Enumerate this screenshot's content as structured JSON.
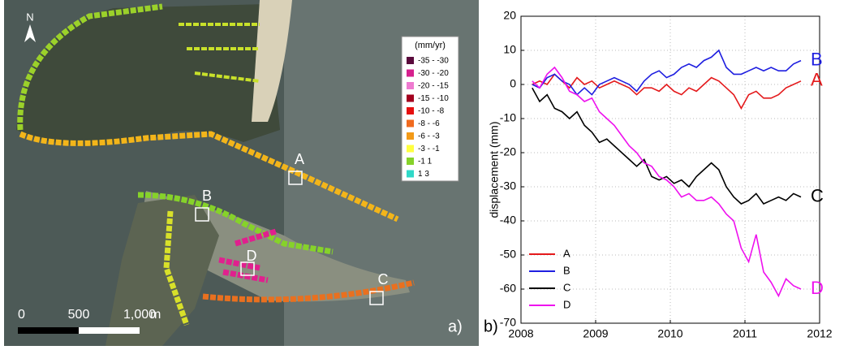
{
  "map": {
    "north": "N",
    "legend": {
      "title": "(mm/yr)",
      "items": [
        {
          "label": "-35 - -30",
          "color": "#5a0a3c"
        },
        {
          "label": "-30 - -20",
          "color": "#d6208e"
        },
        {
          "label": "-20 - -15",
          "color": "#ee7ad0"
        },
        {
          "label": "-15 - -10",
          "color": "#a3001e"
        },
        {
          "label": "-10 - -8",
          "color": "#e60f0f"
        },
        {
          "label": "-8 - -6",
          "color": "#f06a1f"
        },
        {
          "label": "-6 - -3",
          "color": "#f39a18"
        },
        {
          "label": "-3 - -1",
          "color": "#ffff40"
        },
        {
          "label": "-1 1",
          "color": "#86d22a"
        },
        {
          "label": "1 3",
          "color": "#30d9c8"
        }
      ]
    },
    "sites": [
      "A",
      "B",
      "C",
      "D"
    ],
    "scale_labels": [
      "0",
      "500",
      "1,000",
      "m"
    ],
    "panel_label": "a)"
  },
  "chart_data": {
    "type": "line",
    "panel_label": "b)",
    "y_label": "displacement (mm)",
    "xlim": [
      2008,
      2012
    ],
    "xticks": [
      2008,
      2009,
      2010,
      2011,
      2012
    ],
    "ylim": [
      -70,
      20
    ],
    "yticks": [
      -70,
      -60,
      -50,
      -40,
      -30,
      -20,
      -10,
      0,
      10,
      20
    ],
    "grid": true,
    "legend": "lower left",
    "x": [
      2008.15,
      2008.25,
      2008.35,
      2008.45,
      2008.55,
      2008.65,
      2008.75,
      2008.85,
      2008.95,
      2009.05,
      2009.15,
      2009.25,
      2009.35,
      2009.45,
      2009.55,
      2009.65,
      2009.75,
      2009.85,
      2009.95,
      2010.05,
      2010.15,
      2010.25,
      2010.35,
      2010.45,
      2010.55,
      2010.65,
      2010.75,
      2010.85,
      2010.95,
      2011.05,
      2011.15,
      2011.25,
      2011.35,
      2011.45,
      2011.55,
      2011.65,
      2011.75
    ],
    "series": [
      {
        "name": "A",
        "color": "#e41a1c",
        "values": [
          0,
          1,
          0,
          3,
          1,
          -1,
          2,
          0,
          1,
          -1,
          0,
          1,
          0,
          -1,
          -3,
          -1,
          -1,
          -2,
          0,
          -2,
          -3,
          -1,
          -2,
          0,
          2,
          1,
          -1,
          -3,
          -7,
          -3,
          -2,
          -4,
          -4,
          -3,
          -1,
          0,
          1
        ]
      },
      {
        "name": "B",
        "color": "#1f1fe0",
        "values": [
          0,
          -1,
          2,
          3,
          1,
          0,
          -3,
          -1,
          -3,
          0,
          1,
          2,
          1,
          0,
          -2,
          1,
          3,
          4,
          2,
          3,
          5,
          6,
          5,
          7,
          8,
          10,
          5,
          3,
          3,
          4,
          5,
          4,
          5,
          4,
          4,
          6,
          7
        ]
      },
      {
        "name": "C",
        "color": "#000000",
        "values": [
          -1,
          -5,
          -3,
          -7,
          -8,
          -10,
          -8,
          -12,
          -14,
          -17,
          -16,
          -18,
          -20,
          -22,
          -24,
          -22,
          -27,
          -28,
          -27,
          -29,
          -28,
          -30,
          -27,
          -25,
          -23,
          -25,
          -30,
          -33,
          -35,
          -34,
          -32,
          -35,
          -34,
          -33,
          -34,
          -32,
          -33
        ]
      },
      {
        "name": "D",
        "color": "#ee11ee",
        "values": [
          1,
          -1,
          3,
          5,
          2,
          -2,
          -3,
          -5,
          -4,
          -8,
          -10,
          -12,
          -15,
          -18,
          -20,
          -23,
          -24,
          -27,
          -28,
          -30,
          -33,
          -32,
          -34,
          -34,
          -33,
          -35,
          -38,
          -40,
          -48,
          -52,
          -44,
          -55,
          -58,
          -62,
          -57,
          -59,
          -60
        ]
      }
    ]
  }
}
